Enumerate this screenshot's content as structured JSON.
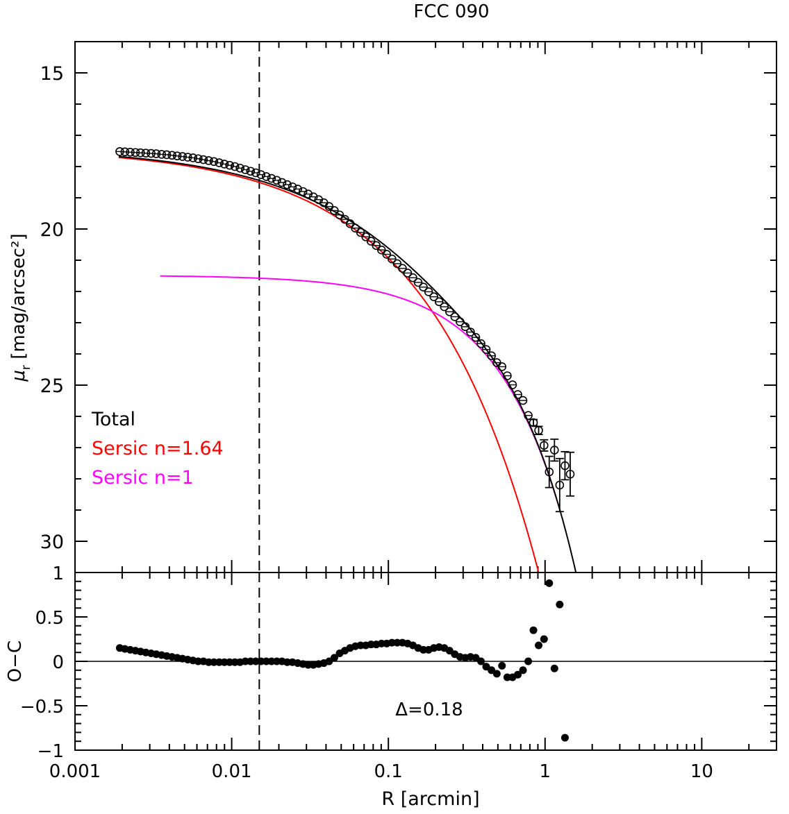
{
  "chart_data": [
    {
      "panel": "top",
      "type": "scatter",
      "title": "FCC 090",
      "xlabel": "R [arcmin]",
      "ylabel_symbol": "μ",
      "ylabel_sub": "r",
      "ylabel_unit": "[mag/arcsec²]",
      "xscale": "log",
      "xlim": [
        0.001,
        30
      ],
      "ylim": [
        31.0,
        14.0
      ],
      "yticks": [
        15,
        20,
        25,
        30
      ],
      "ytick_labels": [
        "15",
        "20",
        "25",
        "30"
      ],
      "cutoff_radius": 0.015,
      "legend": [
        {
          "label": "Total",
          "color": "#000000"
        },
        {
          "label": "Sersic n=1.64",
          "color": "#ff0000"
        },
        {
          "label": "Sersic n=1",
          "color": "#ff00ff"
        }
      ],
      "legend_position": "lower-left",
      "models": [
        {
          "name": "Sersic n=1.64",
          "n": 1.64,
          "mu_e": 20.6,
          "r_e": 0.085,
          "color": "#ff0000",
          "r_min": 0.0019,
          "r_max": 1.2
        },
        {
          "name": "Sersic n=1",
          "n": 1.0,
          "mu_e": 23.3,
          "r_e": 0.3,
          "color": "#ff00ff",
          "r_min": 0.0035,
          "r_max": 1.2
        },
        {
          "name": "Total",
          "color": "#000000",
          "r_min": 0.0019,
          "r_max": 3.0
        }
      ],
      "points": [
        {
          "r": 0.00193,
          "mu": 17.52
        },
        {
          "r": 0.00208,
          "mu": 17.53
        },
        {
          "r": 0.00225,
          "mu": 17.54
        },
        {
          "r": 0.00243,
          "mu": 17.55
        },
        {
          "r": 0.00262,
          "mu": 17.56
        },
        {
          "r": 0.00283,
          "mu": 17.57
        },
        {
          "r": 0.00306,
          "mu": 17.58
        },
        {
          "r": 0.0033,
          "mu": 17.59
        },
        {
          "r": 0.00357,
          "mu": 17.61
        },
        {
          "r": 0.00385,
          "mu": 17.62
        },
        {
          "r": 0.00416,
          "mu": 17.64
        },
        {
          "r": 0.00449,
          "mu": 17.66
        },
        {
          "r": 0.00485,
          "mu": 17.68
        },
        {
          "r": 0.00524,
          "mu": 17.7
        },
        {
          "r": 0.00566,
          "mu": 17.72
        },
        {
          "r": 0.00611,
          "mu": 17.75
        },
        {
          "r": 0.0066,
          "mu": 17.78
        },
        {
          "r": 0.00713,
          "mu": 17.81
        },
        {
          "r": 0.0077,
          "mu": 17.84
        },
        {
          "r": 0.00832,
          "mu": 17.88
        },
        {
          "r": 0.00898,
          "mu": 17.92
        },
        {
          "r": 0.0097,
          "mu": 17.96
        },
        {
          "r": 0.01048,
          "mu": 18.0
        },
        {
          "r": 0.01131,
          "mu": 18.05
        },
        {
          "r": 0.01222,
          "mu": 18.1
        },
        {
          "r": 0.0132,
          "mu": 18.15
        },
        {
          "r": 0.01425,
          "mu": 18.2
        },
        {
          "r": 0.01539,
          "mu": 18.26
        },
        {
          "r": 0.01662,
          "mu": 18.32
        },
        {
          "r": 0.01795,
          "mu": 18.38
        },
        {
          "r": 0.01939,
          "mu": 18.44
        },
        {
          "r": 0.02094,
          "mu": 18.51
        },
        {
          "r": 0.02261,
          "mu": 18.58
        },
        {
          "r": 0.02442,
          "mu": 18.65
        },
        {
          "r": 0.02638,
          "mu": 18.72
        },
        {
          "r": 0.02849,
          "mu": 18.8
        },
        {
          "r": 0.03076,
          "mu": 18.88
        },
        {
          "r": 0.03323,
          "mu": 18.97
        },
        {
          "r": 0.03588,
          "mu": 19.06
        },
        {
          "r": 0.03875,
          "mu": 19.16
        },
        {
          "r": 0.04185,
          "mu": 19.28
        },
        {
          "r": 0.0452,
          "mu": 19.41
        },
        {
          "r": 0.04882,
          "mu": 19.55
        },
        {
          "r": 0.05272,
          "mu": 19.69
        },
        {
          "r": 0.05694,
          "mu": 19.83
        },
        {
          "r": 0.0615,
          "mu": 19.97
        },
        {
          "r": 0.06642,
          "mu": 20.11
        },
        {
          "r": 0.07173,
          "mu": 20.25
        },
        {
          "r": 0.07747,
          "mu": 20.39
        },
        {
          "r": 0.08367,
          "mu": 20.53
        },
        {
          "r": 0.09036,
          "mu": 20.67
        },
        {
          "r": 0.09759,
          "mu": 20.81
        },
        {
          "r": 0.1054,
          "mu": 20.96
        },
        {
          "r": 0.11383,
          "mu": 21.11
        },
        {
          "r": 0.12294,
          "mu": 21.26
        },
        {
          "r": 0.13277,
          "mu": 21.41
        },
        {
          "r": 0.14339,
          "mu": 21.56
        },
        {
          "r": 0.15487,
          "mu": 21.71
        },
        {
          "r": 0.16725,
          "mu": 21.86
        },
        {
          "r": 0.18063,
          "mu": 22.01
        },
        {
          "r": 0.19509,
          "mu": 22.17
        },
        {
          "r": 0.21069,
          "mu": 22.33
        },
        {
          "r": 0.22755,
          "mu": 22.49
        },
        {
          "r": 0.24575,
          "mu": 22.65
        },
        {
          "r": 0.26541,
          "mu": 22.81
        },
        {
          "r": 0.28665,
          "mu": 22.97
        },
        {
          "r": 0.30958,
          "mu": 23.13
        },
        {
          "r": 0.33435,
          "mu": 23.3
        },
        {
          "r": 0.36109,
          "mu": 23.47
        },
        {
          "r": 0.39,
          "mu": 23.67
        },
        {
          "r": 0.421,
          "mu": 23.86
        },
        {
          "r": 0.455,
          "mu": 24.06
        },
        {
          "r": 0.492,
          "mu": 24.28
        },
        {
          "r": 0.531,
          "mu": 24.41
        },
        {
          "r": 0.574,
          "mu": 24.7
        },
        {
          "r": 0.62,
          "mu": 24.99
        },
        {
          "r": 0.67,
          "mu": 25.3
        },
        {
          "r": 0.723,
          "mu": 25.49
        },
        {
          "r": 0.781,
          "mu": 25.97
        },
        {
          "r": 0.843,
          "mu": 26.2,
          "err": 0.1
        },
        {
          "r": 0.91,
          "mu": 26.45,
          "err": 0.13
        },
        {
          "r": 0.985,
          "mu": 26.93,
          "err": 0.18
        },
        {
          "r": 1.063,
          "mu": 27.78,
          "err": 0.5
        },
        {
          "r": 1.148,
          "mu": 27.08,
          "err": 0.35
        },
        {
          "r": 1.24,
          "mu": 28.2,
          "err": 0.85
        },
        {
          "r": 1.34,
          "mu": 27.58,
          "err": 0.45
        },
        {
          "r": 1.447,
          "mu": 27.85,
          "err": 0.7
        }
      ]
    },
    {
      "panel": "bottom",
      "type": "scatter",
      "xlabel": "R [arcmin]",
      "ylabel": "O−C",
      "xscale": "log",
      "xlim": [
        0.001,
        30
      ],
      "ylim": [
        -1.0,
        1.0
      ],
      "xticks": [
        0.001,
        0.01,
        0.1,
        1,
        10
      ],
      "xtick_labels": [
        "0.001",
        "0.01",
        "0.1",
        "1",
        "10"
      ],
      "yticks": [
        -1,
        -0.5,
        0,
        0.5,
        1
      ],
      "ytick_labels": [
        "−1",
        "−0.5",
        "0",
        "0.5",
        "1"
      ],
      "annotation": "Δ=0.18",
      "points": [
        {
          "r": 0.00193,
          "v": 0.15
        },
        {
          "r": 0.00208,
          "v": 0.14
        },
        {
          "r": 0.00225,
          "v": 0.13
        },
        {
          "r": 0.00243,
          "v": 0.12
        },
        {
          "r": 0.00262,
          "v": 0.11
        },
        {
          "r": 0.00283,
          "v": 0.1
        },
        {
          "r": 0.00306,
          "v": 0.09
        },
        {
          "r": 0.0033,
          "v": 0.08
        },
        {
          "r": 0.00357,
          "v": 0.07
        },
        {
          "r": 0.00385,
          "v": 0.06
        },
        {
          "r": 0.00416,
          "v": 0.05
        },
        {
          "r": 0.00449,
          "v": 0.04
        },
        {
          "r": 0.00485,
          "v": 0.03
        },
        {
          "r": 0.00524,
          "v": 0.02
        },
        {
          "r": 0.00566,
          "v": 0.01
        },
        {
          "r": 0.00611,
          "v": 0.0
        },
        {
          "r": 0.0066,
          "v": 0.0
        },
        {
          "r": 0.00713,
          "v": -0.01
        },
        {
          "r": 0.0077,
          "v": -0.01
        },
        {
          "r": 0.00832,
          "v": -0.01
        },
        {
          "r": 0.00898,
          "v": -0.01
        },
        {
          "r": 0.0097,
          "v": -0.01
        },
        {
          "r": 0.01048,
          "v": -0.01
        },
        {
          "r": 0.01131,
          "v": -0.01
        },
        {
          "r": 0.01222,
          "v": 0.0
        },
        {
          "r": 0.0132,
          "v": 0.0
        },
        {
          "r": 0.01425,
          "v": 0.0
        },
        {
          "r": 0.01539,
          "v": 0.0
        },
        {
          "r": 0.01662,
          "v": 0.0
        },
        {
          "r": 0.01795,
          "v": 0.0
        },
        {
          "r": 0.01939,
          "v": 0.0
        },
        {
          "r": 0.02094,
          "v": 0.0
        },
        {
          "r": 0.02261,
          "v": -0.01
        },
        {
          "r": 0.02442,
          "v": -0.01
        },
        {
          "r": 0.02638,
          "v": -0.02
        },
        {
          "r": 0.02849,
          "v": -0.03
        },
        {
          "r": 0.03076,
          "v": -0.04
        },
        {
          "r": 0.03323,
          "v": -0.04
        },
        {
          "r": 0.03588,
          "v": -0.03
        },
        {
          "r": 0.03875,
          "v": -0.02
        },
        {
          "r": 0.04185,
          "v": 0.0
        },
        {
          "r": 0.0452,
          "v": 0.04
        },
        {
          "r": 0.04882,
          "v": 0.09
        },
        {
          "r": 0.05272,
          "v": 0.12
        },
        {
          "r": 0.05694,
          "v": 0.15
        },
        {
          "r": 0.0615,
          "v": 0.17
        },
        {
          "r": 0.06642,
          "v": 0.18
        },
        {
          "r": 0.07173,
          "v": 0.18
        },
        {
          "r": 0.07747,
          "v": 0.19
        },
        {
          "r": 0.08367,
          "v": 0.19
        },
        {
          "r": 0.09036,
          "v": 0.2
        },
        {
          "r": 0.09759,
          "v": 0.2
        },
        {
          "r": 0.1054,
          "v": 0.21
        },
        {
          "r": 0.11383,
          "v": 0.21
        },
        {
          "r": 0.12294,
          "v": 0.21
        },
        {
          "r": 0.13277,
          "v": 0.2
        },
        {
          "r": 0.14339,
          "v": 0.18
        },
        {
          "r": 0.15487,
          "v": 0.15
        },
        {
          "r": 0.16725,
          "v": 0.13
        },
        {
          "r": 0.18063,
          "v": 0.13
        },
        {
          "r": 0.19509,
          "v": 0.15
        },
        {
          "r": 0.21069,
          "v": 0.16
        },
        {
          "r": 0.22755,
          "v": 0.15
        },
        {
          "r": 0.24575,
          "v": 0.12
        },
        {
          "r": 0.26541,
          "v": 0.08
        },
        {
          "r": 0.28665,
          "v": 0.05
        },
        {
          "r": 0.30958,
          "v": 0.04
        },
        {
          "r": 0.33435,
          "v": 0.05
        },
        {
          "r": 0.36109,
          "v": 0.04
        },
        {
          "r": 0.39,
          "v": 0.0
        },
        {
          "r": 0.421,
          "v": -0.06
        },
        {
          "r": 0.455,
          "v": -0.1
        },
        {
          "r": 0.492,
          "v": -0.14
        },
        {
          "r": 0.531,
          "v": -0.05
        },
        {
          "r": 0.574,
          "v": -0.18
        },
        {
          "r": 0.62,
          "v": -0.18
        },
        {
          "r": 0.67,
          "v": -0.15
        },
        {
          "r": 0.723,
          "v": -0.1
        },
        {
          "r": 0.781,
          "v": 0.0
        },
        {
          "r": 0.843,
          "v": 0.35
        },
        {
          "r": 0.91,
          "v": 0.18
        },
        {
          "r": 0.985,
          "v": 0.25
        },
        {
          "r": 1.063,
          "v": 0.88
        },
        {
          "r": 1.148,
          "v": -0.08
        },
        {
          "r": 1.24,
          "v": 0.64
        },
        {
          "r": 1.34,
          "v": -0.86
        }
      ]
    }
  ]
}
